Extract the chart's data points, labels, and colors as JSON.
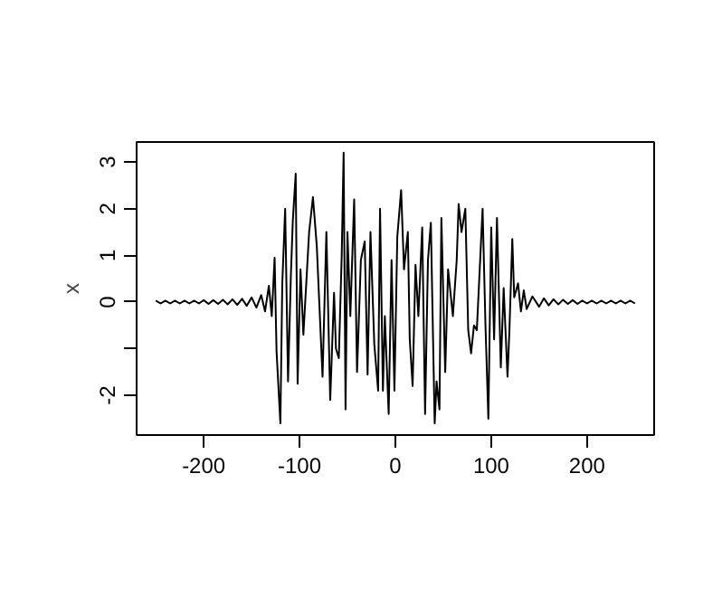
{
  "chart_data": {
    "type": "line",
    "ylabel": "x",
    "x": [
      -250,
      -245,
      -240,
      -235,
      -230,
      -225,
      -220,
      -215,
      -210,
      -205,
      -200,
      -195,
      -190,
      -185,
      -180,
      -175,
      -170,
      -165,
      -160,
      -155,
      -150,
      -145,
      -140,
      -136,
      -132,
      -129,
      -126,
      -124,
      -120,
      -118,
      -115,
      -112,
      -109,
      -107,
      -104,
      -102,
      -99,
      -96,
      -90,
      -86,
      -82,
      -76,
      -72,
      -68,
      -64,
      -62,
      -59,
      -56,
      -54,
      -52,
      -50,
      -47,
      -43,
      -40,
      -36,
      -32,
      -29,
      -26,
      -22,
      -18,
      -16,
      -13,
      -11,
      -7,
      -4,
      -1,
      2,
      6,
      9,
      13,
      15,
      18,
      21,
      24,
      28,
      31,
      34,
      37,
      41,
      43,
      46,
      48,
      52,
      55,
      60,
      64,
      66,
      69,
      73,
      76,
      79,
      82,
      85,
      91,
      94,
      97,
      100,
      103,
      106,
      110,
      113,
      117,
      119,
      122,
      124,
      128,
      131,
      134,
      137,
      143,
      150,
      155,
      160,
      165,
      170,
      175,
      180,
      185,
      190,
      195,
      200,
      205,
      210,
      215,
      220,
      225,
      230,
      235,
      240,
      245,
      250
    ],
    "values": [
      0.03,
      -0.03,
      0.03,
      -0.03,
      0.03,
      -0.03,
      0.03,
      -0.03,
      0.03,
      -0.03,
      0.04,
      -0.04,
      0.04,
      -0.04,
      0.05,
      -0.05,
      0.06,
      -0.06,
      0.07,
      -0.08,
      0.1,
      -0.12,
      0.15,
      -0.2,
      0.35,
      -0.3,
      0.95,
      -1.05,
      -2.6,
      0.4,
      2.0,
      -1.7,
      0.6,
      1.75,
      2.75,
      -1.75,
      0.7,
      -0.7,
      1.5,
      2.25,
      1.2,
      -1.6,
      1.5,
      -2.1,
      0.2,
      -1.0,
      -1.2,
      1.0,
      3.2,
      -2.3,
      1.5,
      -0.3,
      2.2,
      -1.5,
      0.9,
      1.3,
      -1.55,
      1.5,
      -0.9,
      -1.9,
      2.0,
      -1.9,
      -0.3,
      -2.4,
      0.9,
      -1.9,
      1.4,
      2.4,
      0.7,
      1.5,
      -0.8,
      -1.8,
      0.8,
      -0.3,
      1.6,
      -2.4,
      0.9,
      1.7,
      -2.6,
      -1.7,
      -2.3,
      1.8,
      -1.5,
      0.7,
      -0.3,
      0.9,
      2.1,
      1.5,
      2.0,
      -0.6,
      -1.1,
      -0.5,
      -0.6,
      2.0,
      -0.5,
      -2.5,
      1.6,
      -0.8,
      1.8,
      -1.4,
      0.3,
      -1.6,
      -0.6,
      1.35,
      0.1,
      0.4,
      -0.2,
      0.25,
      -0.15,
      0.12,
      -0.1,
      0.08,
      -0.07,
      0.06,
      -0.05,
      0.05,
      -0.04,
      0.04,
      -0.04,
      0.03,
      -0.03,
      0.03,
      -0.03,
      0.03,
      -0.03,
      0.03,
      -0.03,
      0.03,
      -0.03,
      0.03,
      -0.03
    ],
    "color": "#000000",
    "xlim": [
      -270,
      270
    ],
    "ylim": [
      -2.85,
      3.43
    ],
    "xticks": [
      -200,
      -100,
      0,
      100,
      200
    ],
    "yticks": [
      {
        "value": -2,
        "label": "-2"
      },
      {
        "value": -1,
        "label": null
      },
      0,
      1,
      2,
      3
    ],
    "grid": false
  }
}
